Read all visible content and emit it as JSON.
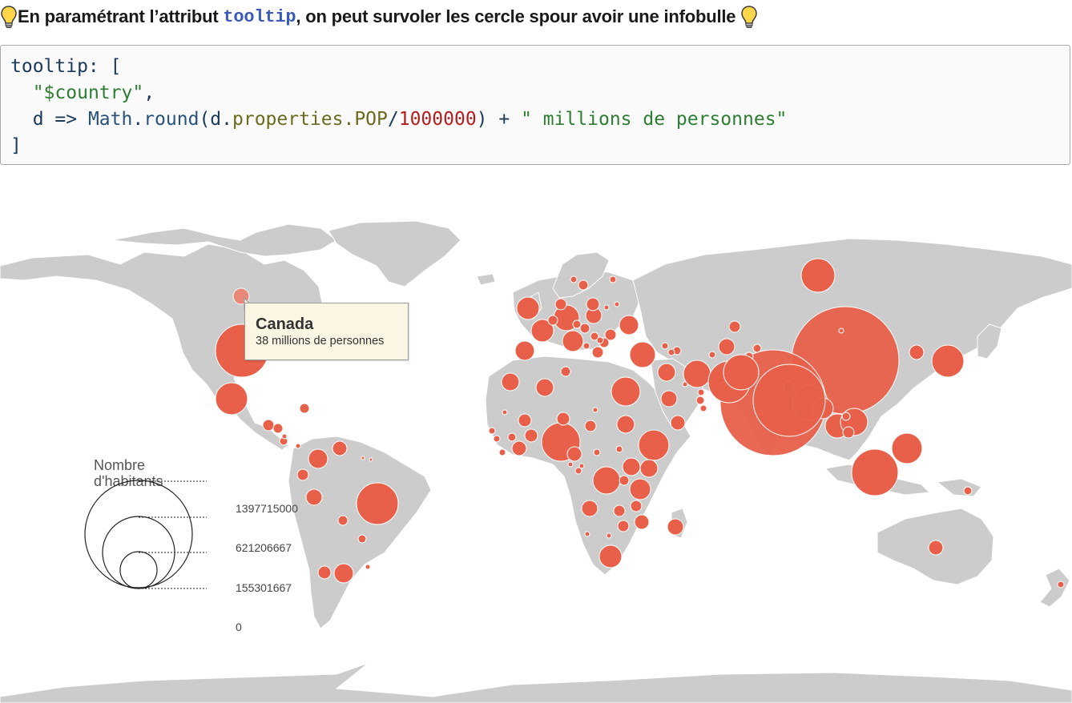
{
  "heading": {
    "prefix": "En paramétrant l’attribut ",
    "code": "tooltip",
    "suffix": ", on peut survoler les cercle spour avoir une infobulle",
    "icon": "light-bulb-icon"
  },
  "code": {
    "l1": "tooltip: [",
    "l2_str": "\"$country\"",
    "l2_comma": ",",
    "l3_a": "d => ",
    "l3_math": "Math",
    "l3_dot": ".",
    "l3_round": "round",
    "l3_b": "(d.",
    "l3_prop": "properties.POP",
    "l3_slash": "/",
    "l3_num": "1000000",
    "l3_c": ") + ",
    "l3_str": "\" millions de personnes\"",
    "l4": "]"
  },
  "tooltip": {
    "country": "Canada",
    "text": "38 millions de personnes"
  },
  "legend": {
    "title_1": "Nombre",
    "title_2": "d'habitants",
    "ticks": [
      "1397715000",
      "621206667",
      "155301667",
      "0"
    ]
  },
  "colors": {
    "land": "#cccccc",
    "bubble": "#e8604a",
    "tooltip_bg": "#fbf6e3"
  }
}
